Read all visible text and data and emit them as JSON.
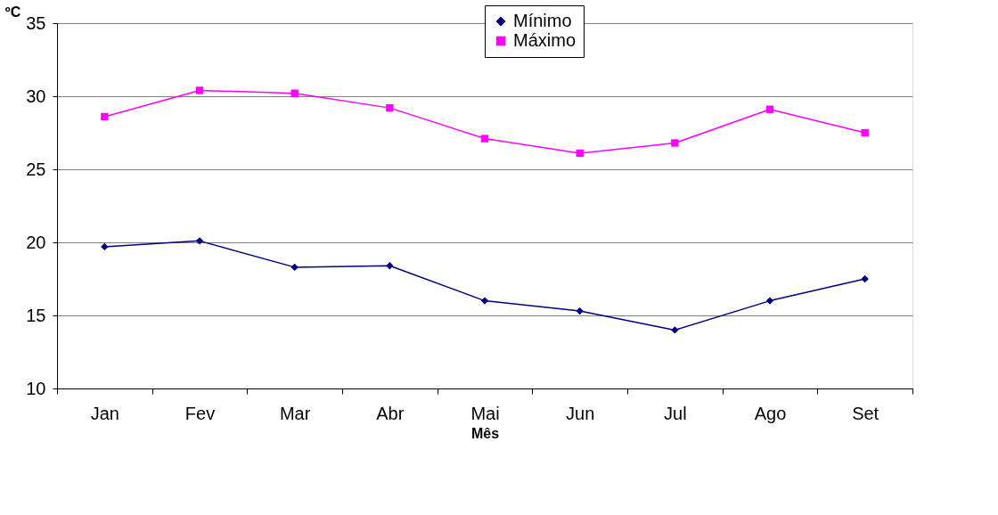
{
  "chart_data": {
    "type": "line",
    "xlabel": "Mês",
    "ylabel": "ºC",
    "categories": [
      "Jan",
      "Fev",
      "Mar",
      "Abr",
      "Mai",
      "Jun",
      "Jul",
      "Ago",
      "Set"
    ],
    "series": [
      {
        "name": "Mínimo",
        "color": "#000080",
        "marker": "diamond",
        "values": [
          19.7,
          20.1,
          18.3,
          18.4,
          16.0,
          15.3,
          14.0,
          16.0,
          17.5
        ]
      },
      {
        "name": "Máximo",
        "color": "#ff00ff",
        "marker": "square",
        "values": [
          28.6,
          30.4,
          30.2,
          29.2,
          27.1,
          26.1,
          26.8,
          29.1,
          27.5
        ]
      }
    ],
    "ylim": [
      10,
      35
    ],
    "yticks": [
      10,
      15,
      20,
      25,
      30,
      35
    ],
    "grid": "y",
    "legend": "top",
    "line_style": "solid"
  }
}
